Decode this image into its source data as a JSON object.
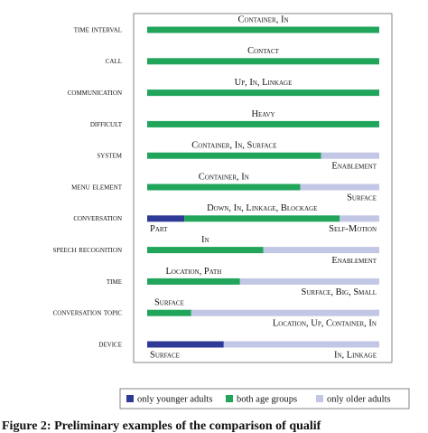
{
  "chart_data": {
    "type": "stacked-barh",
    "categories": [
      "time interval",
      "call",
      "communication",
      "difficult",
      "system",
      "menu element",
      "conversation",
      "speech recognition",
      "time",
      "conversation topic",
      "device"
    ],
    "xlim": [
      0,
      100
    ],
    "series": [
      {
        "name": "only younger adults",
        "color": "#2e3a96",
        "values": [
          0,
          0,
          0,
          0,
          0,
          0,
          16,
          0,
          0,
          0,
          33
        ],
        "labels": [
          null,
          null,
          null,
          null,
          null,
          null,
          "Part",
          null,
          null,
          null,
          "Surface"
        ]
      },
      {
        "name": "both age groups",
        "color": "#21a55b",
        "values": [
          100,
          100,
          100,
          100,
          75,
          66,
          67,
          50,
          40,
          19,
          0
        ],
        "labels": [
          "Container, In",
          "Contact",
          "Up, In, Linkage",
          "Heavy",
          "Container, In, Surface",
          "Container, In",
          "Down, In, Linkage, Blockage",
          "In",
          "Location, Path",
          "Surface",
          null
        ]
      },
      {
        "name": "only older adults",
        "color": "#c2c7e6",
        "values": [
          0,
          0,
          0,
          0,
          25,
          34,
          17,
          50,
          60,
          81,
          67
        ],
        "labels": [
          null,
          null,
          null,
          null,
          "Enablement",
          "Surface",
          "Self-Motion",
          "Enablement",
          "Surface, Big, Small",
          "Location, Up, Container, In",
          "In, Linkage"
        ]
      }
    ],
    "caption": "Figure 2: Preliminary examples of the comparison of qualif"
  }
}
